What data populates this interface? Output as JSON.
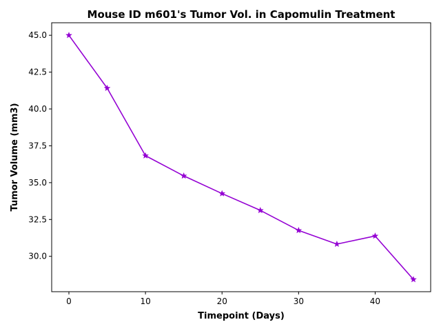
{
  "chart_data": {
    "type": "line",
    "title": "Mouse ID m601's Tumor Vol. in Capomulin Treatment",
    "xlabel": "Timepoint (Days)",
    "ylabel": "Tumor Volume (mm3)",
    "x": [
      0,
      5,
      10,
      15,
      20,
      25,
      30,
      35,
      40,
      45
    ],
    "series": [
      {
        "values": [
          45.0,
          41.41,
          36.83,
          35.46,
          34.26,
          33.12,
          31.76,
          30.83,
          31.38,
          28.43
        ],
        "color": "#9400d3",
        "marker": "star"
      }
    ],
    "xlim": [
      -2.25,
      47.25
    ],
    "ylim": [
      27.6,
      45.85
    ],
    "xticks": [
      0,
      10,
      20,
      30,
      40
    ],
    "xtick_labels": [
      "0",
      "10",
      "20",
      "30",
      "40"
    ],
    "yticks": [
      30.0,
      32.5,
      35.0,
      37.5,
      40.0,
      42.5,
      45.0
    ],
    "ytick_labels": [
      "30.0",
      "32.5",
      "35.0",
      "37.5",
      "40.0",
      "42.5",
      "45.0"
    ],
    "grid": false,
    "legend": "none"
  }
}
